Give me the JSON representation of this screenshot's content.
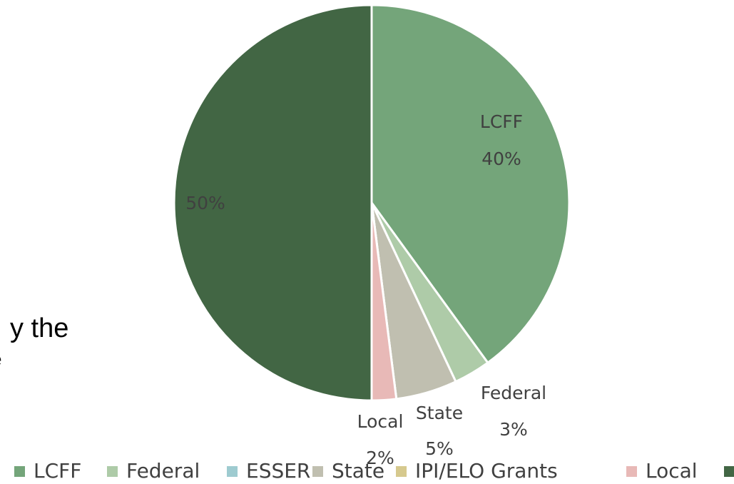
{
  "background_text": [
    "y the",
    "e"
  ],
  "chart_data": {
    "type": "pie",
    "categories": [
      "LCFF",
      "Federal",
      "ESSER",
      "State",
      "IPI/ELO Grants",
      "Local",
      null
    ],
    "values": [
      40,
      3,
      0,
      5,
      0,
      2,
      50
    ],
    "value_labels": [
      "40%",
      "3%",
      null,
      "5%",
      null,
      "2%",
      "50%"
    ],
    "colors": [
      "#74a57a",
      "#aecba8",
      "#9ecbd0",
      "#c0bfb0",
      "#d6c98e",
      "#e8b9b7",
      "#426644"
    ],
    "legend": "bottom"
  }
}
